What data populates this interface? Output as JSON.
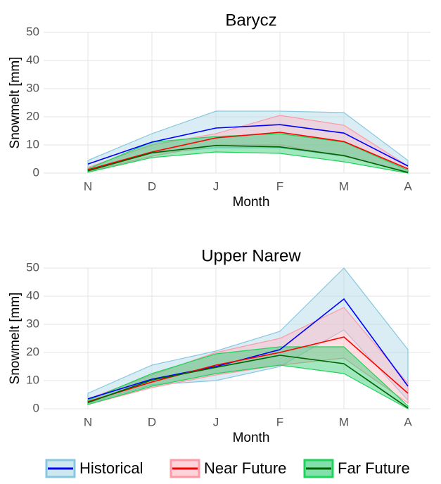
{
  "chart_data": [
    {
      "type": "line",
      "title": "Barycz",
      "xlabel": "Month",
      "ylabel": "Snowmelt [mm]",
      "categories": [
        "N",
        "D",
        "J",
        "F",
        "M",
        "A"
      ],
      "ylim": [
        0,
        50
      ],
      "yticks": [
        0,
        10,
        20,
        30,
        40,
        50
      ],
      "grid": true,
      "series": [
        {
          "name": "Historical",
          "color": "#0000ff",
          "band_color": "#add8e6",
          "band_edge": "#87c8e0",
          "values": [
            3.2,
            11,
            16,
            17.2,
            14.2,
            2.5
          ],
          "upper": [
            4.5,
            14,
            22,
            22,
            21.5,
            4.5
          ],
          "lower": [
            1,
            7,
            9,
            9,
            6,
            0.5
          ]
        },
        {
          "name": "Near Future",
          "color": "#ff0000",
          "band_color": "#ffb6c1",
          "band_edge": "#ff9aa8",
          "values": [
            1.2,
            7.5,
            12.5,
            14.5,
            11.2,
            1.5
          ],
          "upper": [
            2,
            10,
            14,
            20.5,
            17,
            2.5
          ],
          "lower": [
            0.5,
            6,
            10,
            10,
            6,
            0.3
          ]
        },
        {
          "name": "Far Future",
          "color": "#006400",
          "band_color": "#2ecc71",
          "band_edge": "#1fd35a",
          "values": [
            0.8,
            7.2,
            9.8,
            9.3,
            6.2,
            0.2
          ],
          "upper": [
            1.5,
            11,
            13,
            14,
            11,
            1
          ],
          "lower": [
            0.3,
            5.5,
            7.5,
            7,
            4,
            0
          ]
        }
      ]
    },
    {
      "type": "line",
      "title": "Upper Narew",
      "xlabel": "Month",
      "ylabel": "Snowmelt [mm]",
      "categories": [
        "N",
        "D",
        "J",
        "F",
        "M",
        "A"
      ],
      "ylim": [
        0,
        50
      ],
      "yticks": [
        0,
        10,
        20,
        30,
        40,
        50
      ],
      "grid": true,
      "series": [
        {
          "name": "Historical",
          "color": "#0000ff",
          "band_color": "#add8e6",
          "band_edge": "#87c8e0",
          "values": [
            3.5,
            10.5,
            15,
            21,
            39,
            8
          ],
          "upper": [
            5.5,
            15.5,
            20.5,
            27.5,
            50,
            21
          ],
          "lower": [
            2,
            8.5,
            10,
            15,
            28,
            3
          ]
        },
        {
          "name": "Near Future",
          "color": "#ff0000",
          "band_color": "#ffb6c1",
          "band_edge": "#ff9aa8",
          "values": [
            2.5,
            9.5,
            15.5,
            20,
            25.5,
            5.5
          ],
          "upper": [
            3.5,
            12,
            20,
            25,
            36,
            9
          ],
          "lower": [
            1.5,
            7.5,
            12,
            15.5,
            18,
            2
          ]
        },
        {
          "name": "Far Future",
          "color": "#006400",
          "band_color": "#2ecc71",
          "band_edge": "#1fd35a",
          "values": [
            2.2,
            10.2,
            14.7,
            19,
            16,
            0.3
          ],
          "upper": [
            3,
            12.5,
            19.5,
            22,
            22,
            1
          ],
          "lower": [
            1.5,
            8,
            12.5,
            15.5,
            12.5,
            0
          ]
        }
      ]
    }
  ]
}
